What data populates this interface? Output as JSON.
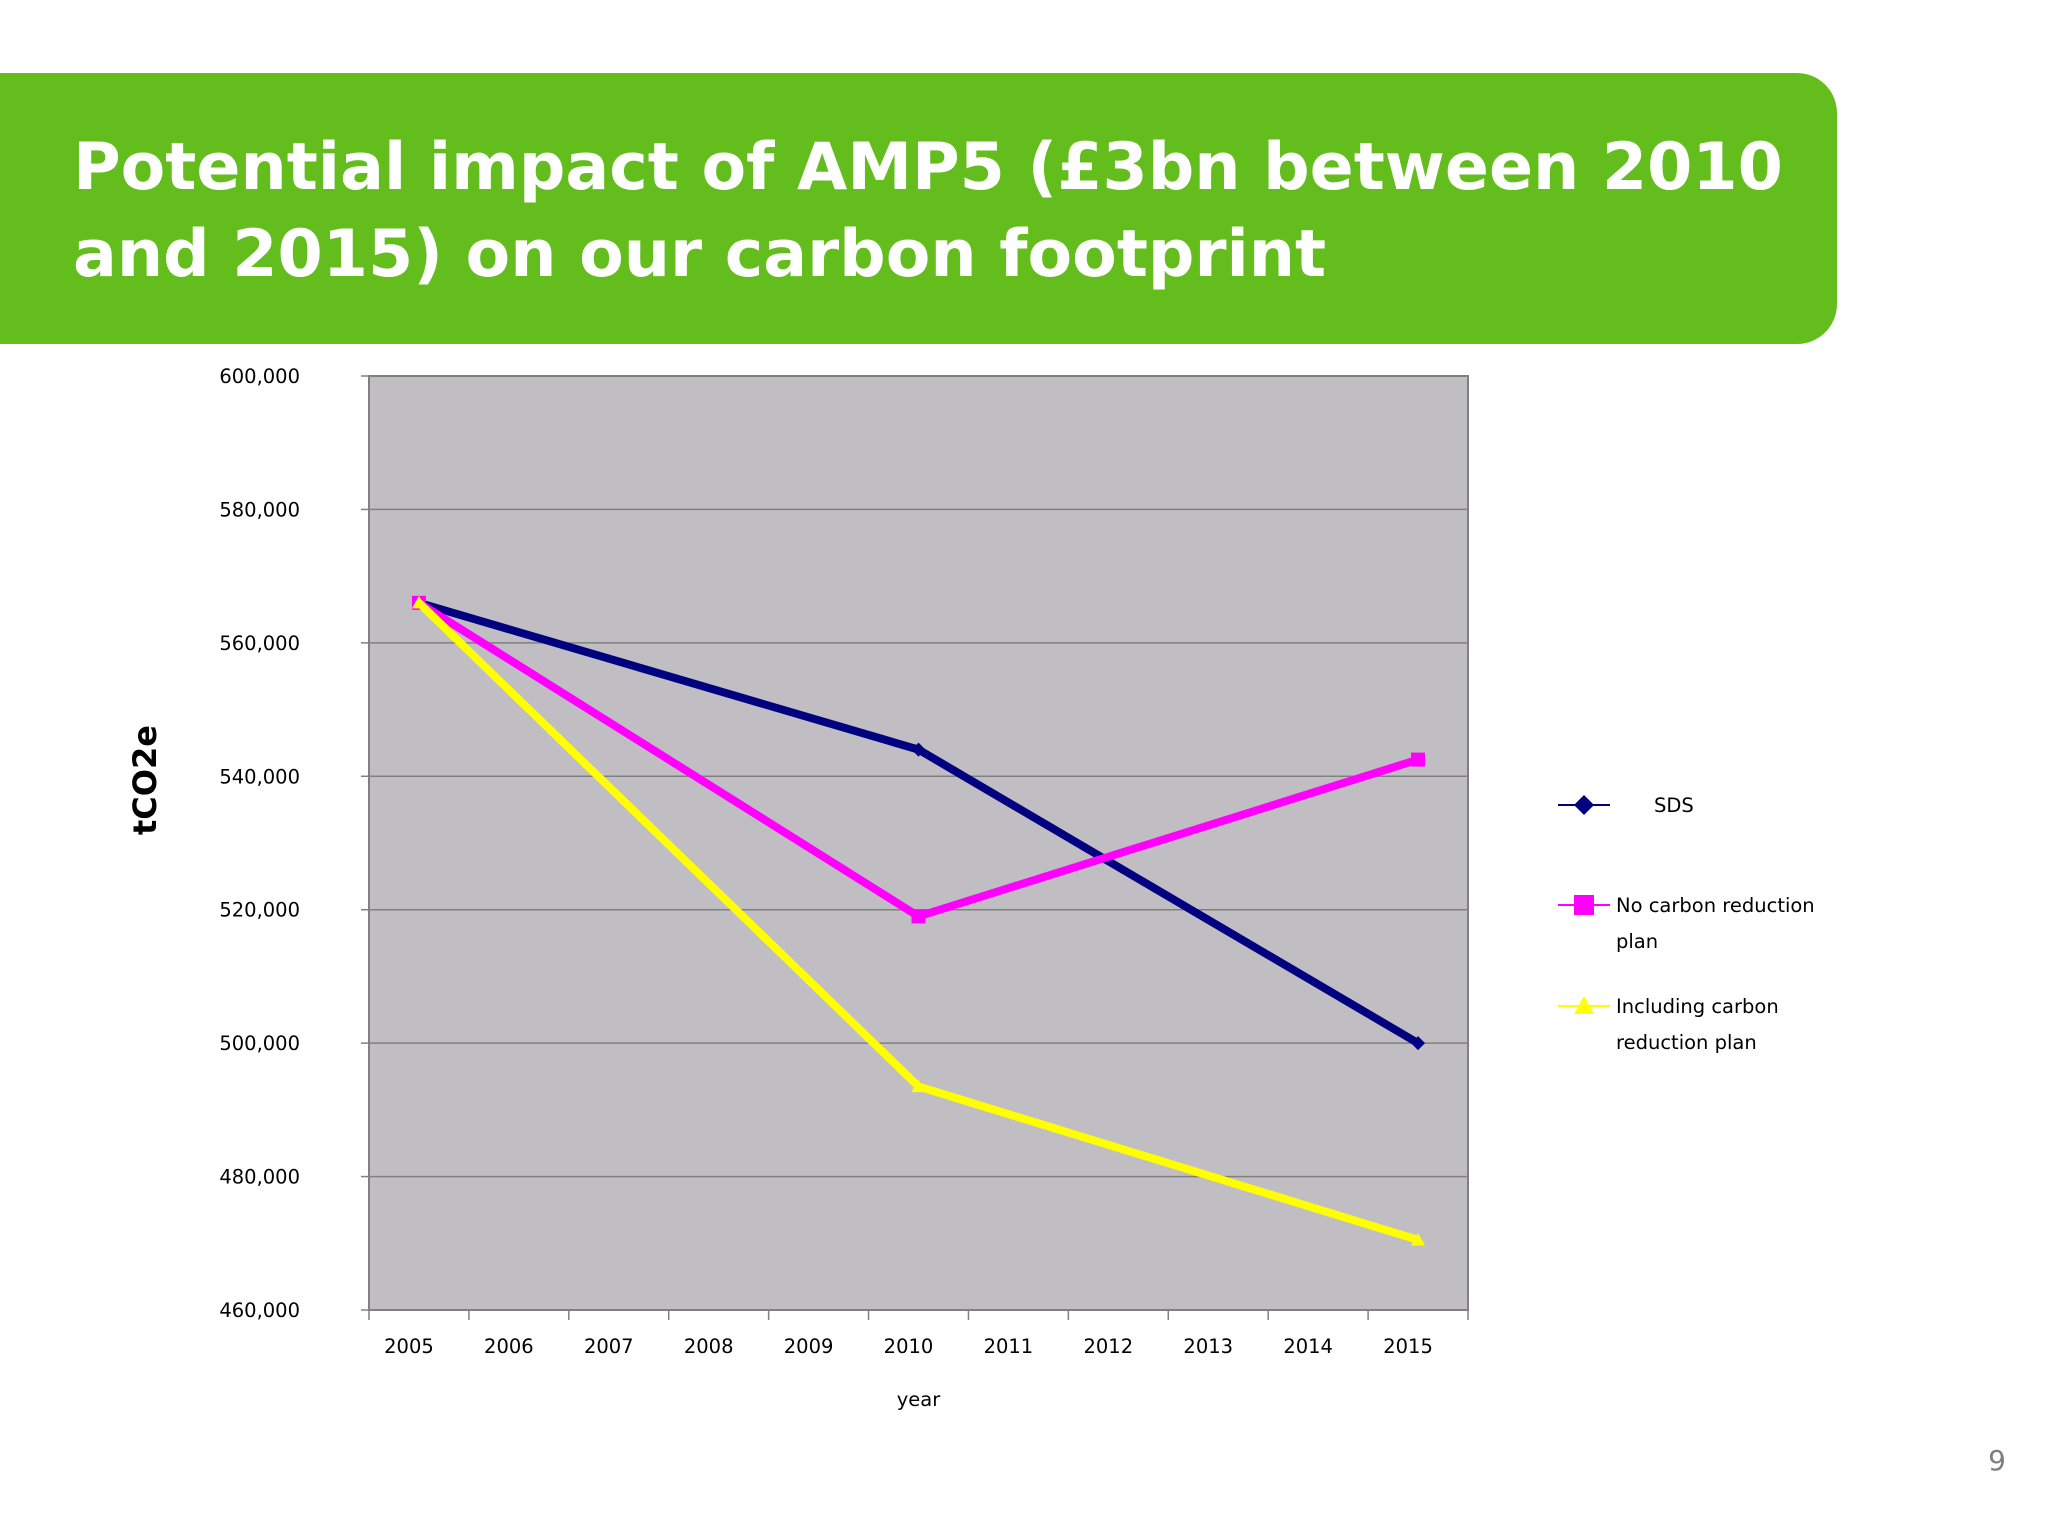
{
  "slide": {
    "title": "Potential impact of AMP5 (£3bn between 2010 and 2015) on our carbon footprint",
    "page_number": "9"
  },
  "chart_data": {
    "type": "line",
    "title": "",
    "xlabel": "year",
    "ylabel": "tCO2e",
    "x_ticks": [
      "2005",
      "2006",
      "2007",
      "2008",
      "2009",
      "2010",
      "2011",
      "2012",
      "2013",
      "2014",
      "2015"
    ],
    "y_ticks": [
      "600,000",
      "580,000",
      "560,000",
      "540,000",
      "520,000",
      "500,000",
      "480,000",
      "460,000"
    ],
    "ylim": [
      460000,
      600000
    ],
    "grid": true,
    "plot_background": "#c0bec2",
    "legend": "right",
    "series": [
      {
        "name": "SDS",
        "color": "#000080",
        "marker": "diamond",
        "x": [
          2005.5,
          2010.5,
          2015.5
        ],
        "y": [
          566000,
          544000,
          500000
        ]
      },
      {
        "name": "No carbon reduction plan",
        "color": "#ff00ff",
        "marker": "square",
        "x": [
          2005.5,
          2010.5,
          2015.5
        ],
        "y": [
          566000,
          519000,
          542500
        ]
      },
      {
        "name": "Including carbon reduction plan",
        "color": "#ffff00",
        "marker": "triangle",
        "x": [
          2005.5,
          2010.5,
          2015.5
        ],
        "y": [
          566000,
          493500,
          470500
        ]
      }
    ]
  }
}
